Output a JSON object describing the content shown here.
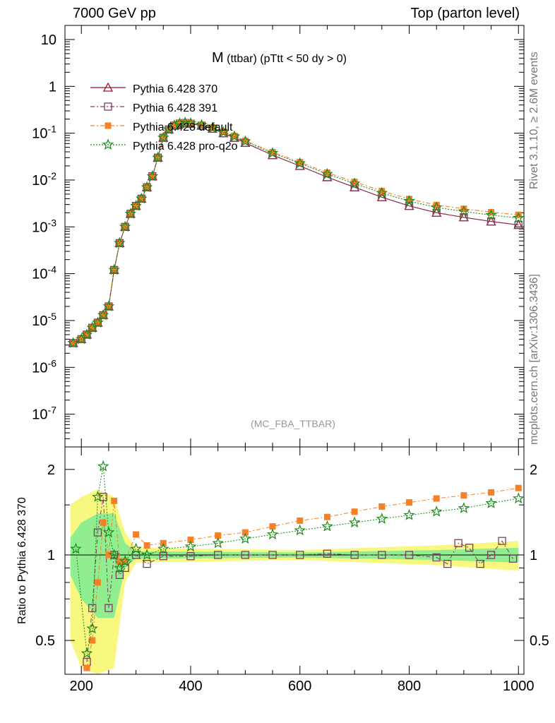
{
  "header": {
    "left": "7000 GeV pp",
    "right": "Top (parton level)"
  },
  "side_labels": {
    "rivet": "Rivet 3.1.10, ≥ 2.6M events",
    "mcplots": "mcplots.cern.ch [arXiv:1306.3436]"
  },
  "chart_data": {
    "type": "scatter",
    "title": "M (ttbar) (pTtt < 50 dy > 0)",
    "title_main": "M",
    "title_sub": "(ttbar) (pTtt < 50 dy > 0)",
    "watermark": "(MC_FBA_TTBAR)",
    "top_panel": {
      "y_scale": "log",
      "ylim": [
        2e-08,
        20
      ],
      "xlim": [
        170,
        1010
      ],
      "y_tick_labels": [
        "10",
        "1",
        "10^-1",
        "10^-2",
        "10^-3",
        "10^-4",
        "10^-5",
        "10^-6",
        "10^-7"
      ]
    },
    "ratio_panel": {
      "ylabel": "Ratio to Pythia 6.428 370",
      "y_scale": "log",
      "ylim": [
        0.38,
        2.4
      ],
      "y_tick_labels": [
        "2",
        "1",
        "0.5"
      ]
    },
    "x_tick_labels": [
      "200",
      "400",
      "600",
      "800",
      "1000"
    ],
    "legend": {
      "placement": "top-left"
    },
    "series": [
      {
        "name": "Pythia 6.428 370",
        "color": "#a0102a",
        "marker": "triangle-open",
        "line": "solid"
      },
      {
        "name": "Pythia 6.428 391",
        "color": "#7a4060",
        "marker": "square-open",
        "line": "dash-dot"
      },
      {
        "name": "Pythia 6.428 default",
        "color": "#f58025",
        "marker": "square-filled",
        "line": "dash-dot"
      },
      {
        "name": "Pythia 6.428 pro-q2o",
        "color": "#1a8a1a",
        "marker": "star",
        "line": "dotted"
      }
    ],
    "mass_points": [
      [
        185,
        3.3e-06
      ],
      [
        200,
        4e-06
      ],
      [
        210,
        5e-06
      ],
      [
        220,
        7e-06
      ],
      [
        230,
        9e-06
      ],
      [
        240,
        1.3e-05
      ],
      [
        250,
        2e-05
      ],
      [
        260,
        0.00012
      ],
      [
        270,
        0.00045
      ],
      [
        280,
        0.001
      ],
      [
        290,
        0.0019
      ],
      [
        300,
        0.0028
      ],
      [
        310,
        0.004
      ],
      [
        320,
        0.007
      ],
      [
        330,
        0.012
      ],
      [
        340,
        0.03
      ],
      [
        350,
        0.08
      ],
      [
        360,
        0.12
      ],
      [
        370,
        0.145
      ],
      [
        380,
        0.16
      ],
      [
        390,
        0.165
      ],
      [
        400,
        0.16
      ],
      [
        420,
        0.145
      ],
      [
        440,
        0.125
      ],
      [
        460,
        0.1
      ],
      [
        480,
        0.08
      ],
      [
        500,
        0.062
      ],
      [
        550,
        0.034
      ],
      [
        600,
        0.02
      ],
      [
        650,
        0.0115
      ],
      [
        700,
        0.007
      ],
      [
        750,
        0.0043
      ],
      [
        800,
        0.0028
      ],
      [
        850,
        0.002
      ],
      [
        900,
        0.0016
      ],
      [
        950,
        0.0013
      ],
      [
        1000,
        0.0011
      ]
    ],
    "ratio_points": {
      "Pythia 6.428 391": [
        [
          210,
          0.42
        ],
        [
          220,
          0.65
        ],
        [
          230,
          1.2
        ],
        [
          240,
          1.6
        ],
        [
          250,
          0.65
        ],
        [
          260,
          1.0
        ],
        [
          270,
          0.85
        ],
        [
          280,
          0.9
        ],
        [
          300,
          1.0
        ],
        [
          320,
          0.93
        ],
        [
          350,
          0.99
        ],
        [
          400,
          0.99
        ],
        [
          450,
          1.0
        ],
        [
          500,
          1.0
        ],
        [
          550,
          1.0
        ],
        [
          600,
          1.0
        ],
        [
          650,
          1.01
        ],
        [
          700,
          1.0
        ],
        [
          750,
          1.0
        ],
        [
          800,
          1.0
        ],
        [
          850,
          0.98
        ],
        [
          870,
          0.93
        ],
        [
          890,
          1.1
        ],
        [
          910,
          1.06
        ],
        [
          930,
          0.93
        ],
        [
          950,
          1.0
        ],
        [
          970,
          1.12
        ],
        [
          990,
          0.97
        ]
      ],
      "Pythia 6.428 default": [
        [
          210,
          0.4
        ],
        [
          220,
          0.5
        ],
        [
          230,
          0.8
        ],
        [
          240,
          1.3
        ],
        [
          250,
          1.0
        ],
        [
          260,
          1.55
        ],
        [
          270,
          0.95
        ],
        [
          280,
          0.95
        ],
        [
          300,
          1.18
        ],
        [
          320,
          1.08
        ],
        [
          350,
          1.1
        ],
        [
          400,
          1.13
        ],
        [
          450,
          1.17
        ],
        [
          500,
          1.2
        ],
        [
          550,
          1.26
        ],
        [
          600,
          1.32
        ],
        [
          650,
          1.36
        ],
        [
          700,
          1.42
        ],
        [
          750,
          1.48
        ],
        [
          800,
          1.53
        ],
        [
          850,
          1.58
        ],
        [
          900,
          1.62
        ],
        [
          950,
          1.66
        ],
        [
          1000,
          1.72
        ]
      ],
      "Pythia 6.428 pro-q2o": [
        [
          190,
          1.05
        ],
        [
          210,
          0.45
        ],
        [
          220,
          0.55
        ],
        [
          230,
          1.6
        ],
        [
          240,
          2.05
        ],
        [
          250,
          1.2
        ],
        [
          260,
          1.0
        ],
        [
          270,
          0.9
        ],
        [
          280,
          0.95
        ],
        [
          300,
          1.05
        ],
        [
          320,
          1.0
        ],
        [
          350,
          1.05
        ],
        [
          400,
          1.07
        ],
        [
          450,
          1.1
        ],
        [
          500,
          1.14
        ],
        [
          550,
          1.18
        ],
        [
          600,
          1.22
        ],
        [
          650,
          1.26
        ],
        [
          700,
          1.3
        ],
        [
          750,
          1.34
        ],
        [
          800,
          1.38
        ],
        [
          850,
          1.42
        ],
        [
          900,
          1.46
        ],
        [
          950,
          1.52
        ],
        [
          1000,
          1.58
        ]
      ]
    },
    "uncertainty_bands": {
      "green": [
        [
          180,
          0.15
        ],
        [
          200,
          0.3
        ],
        [
          230,
          0.4
        ],
        [
          260,
          0.4
        ],
        [
          280,
          0.1
        ],
        [
          300,
          0.03
        ],
        [
          600,
          0.02
        ],
        [
          850,
          0.04
        ],
        [
          1000,
          0.06
        ]
      ],
      "yellow": [
        [
          180,
          0.5
        ],
        [
          200,
          0.6
        ],
        [
          230,
          0.7
        ],
        [
          260,
          0.6
        ],
        [
          280,
          0.2
        ],
        [
          300,
          0.06
        ],
        [
          600,
          0.04
        ],
        [
          850,
          0.08
        ],
        [
          1000,
          0.12
        ]
      ]
    }
  }
}
